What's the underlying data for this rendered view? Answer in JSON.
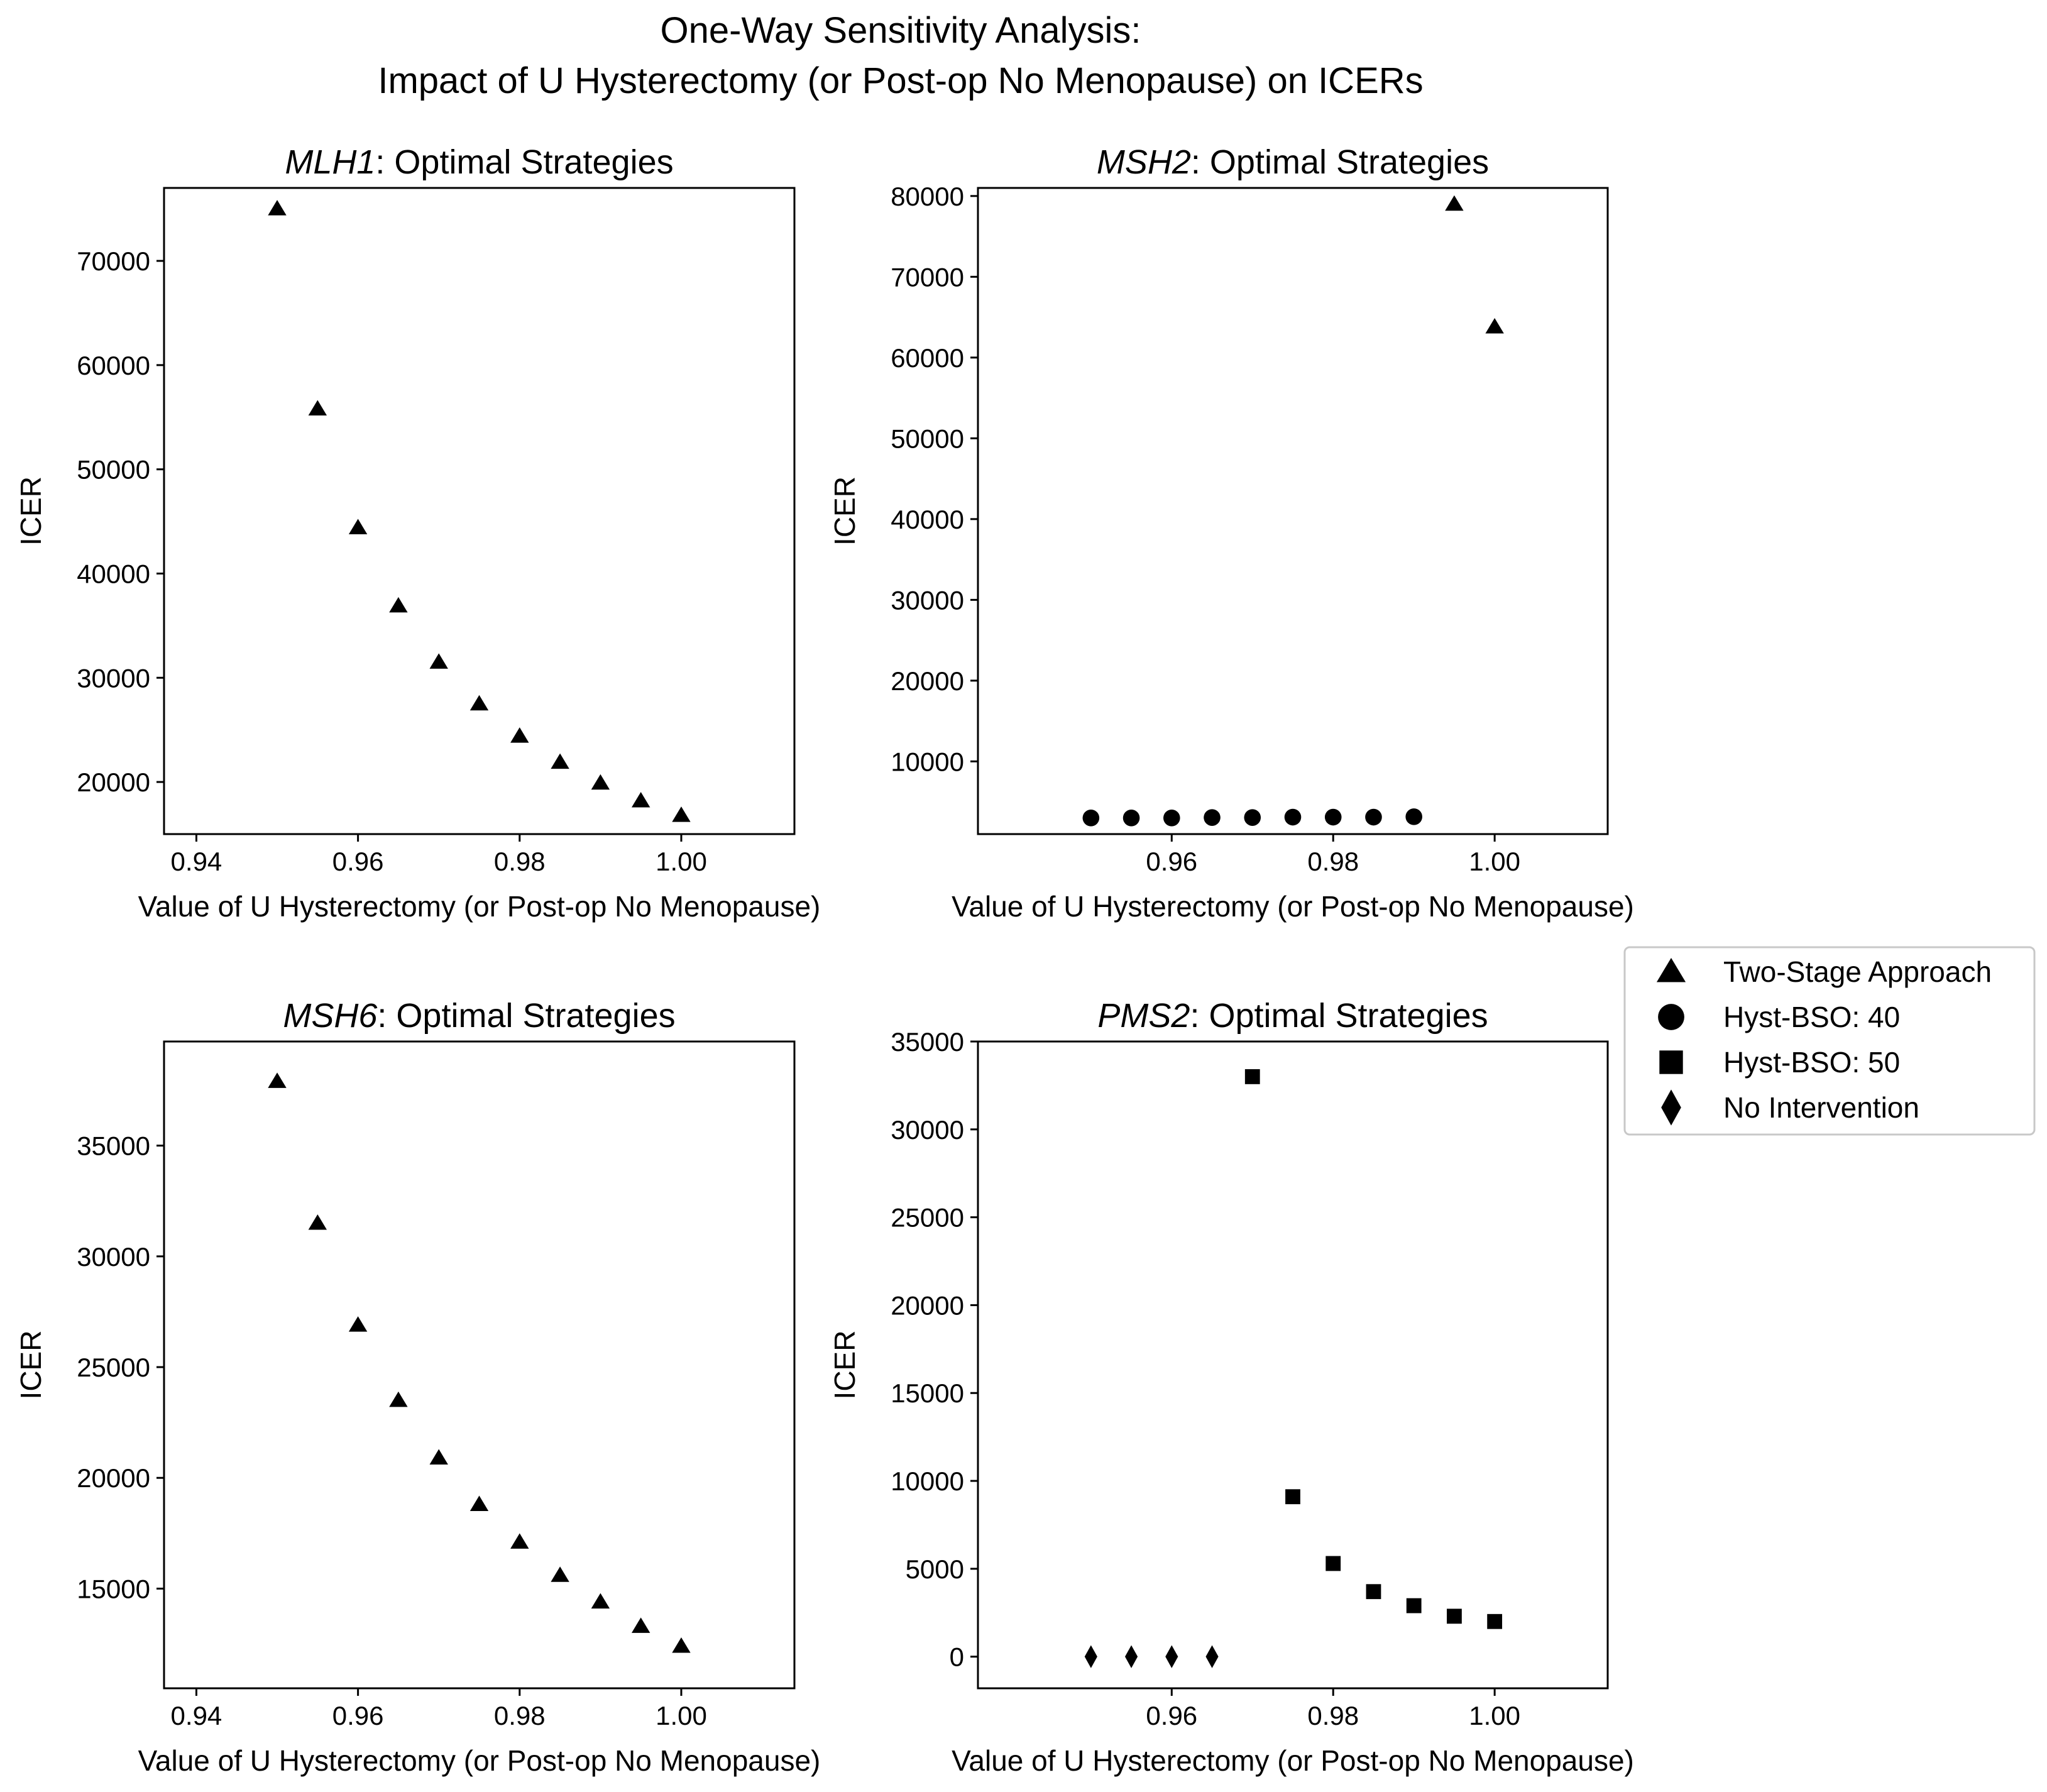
{
  "figure": {
    "title_line1": "One-Way Sensitivity Analysis:",
    "title_line2": "Impact of U Hysterectomy (or Post-op No Menopause) on ICERs"
  },
  "legend": {
    "items": [
      {
        "label": "Two-Stage Approach",
        "marker": "triangle"
      },
      {
        "label": "Hyst-BSO: 40",
        "marker": "circle"
      },
      {
        "label": "Hyst-BSO: 50",
        "marker": "square"
      },
      {
        "label": "No Intervention",
        "marker": "diamond"
      }
    ]
  },
  "chart_data": [
    {
      "type": "scatter",
      "title_gene": "MLH1",
      "title_suffix": ": Optimal Strategies",
      "xlabel": "Value of U Hysterectomy (or Post-op No Menopause)",
      "ylabel": "ICER",
      "xlim": [
        0.936,
        1.014
      ],
      "ylim": [
        15000,
        77000
      ],
      "xticks": [
        "0.94",
        "0.96",
        "0.98",
        "1.00"
      ],
      "yticks": [
        "20000",
        "30000",
        "40000",
        "50000",
        "60000",
        "70000"
      ],
      "grid": false,
      "series": [
        {
          "marker": "triangle",
          "x": [
            0.95,
            0.955,
            0.96,
            0.965,
            0.97,
            0.975,
            0.98,
            0.985,
            0.99,
            0.995,
            1.0
          ],
          "y": [
            75000,
            55800,
            44400,
            36900,
            31500,
            27500,
            24400,
            21900,
            19900,
            18200,
            16800
          ]
        }
      ]
    },
    {
      "type": "scatter",
      "title_gene": "MSH2",
      "title_suffix": ": Optimal Strategies",
      "xlabel": "Value of U Hysterectomy (or Post-op No Menopause)",
      "ylabel": "ICER",
      "xlim": [
        0.936,
        1.014
      ],
      "ylim": [
        1000,
        81000
      ],
      "xticks": [
        "0.96",
        "0.98",
        "1.00"
      ],
      "yticks": [
        "10000",
        "20000",
        "30000",
        "40000",
        "50000",
        "60000",
        "70000",
        "80000"
      ],
      "grid": false,
      "series": [
        {
          "marker": "circle",
          "x": [
            0.95,
            0.955,
            0.96,
            0.965,
            0.97,
            0.975,
            0.98,
            0.985,
            0.99
          ],
          "y": [
            3000,
            3000,
            3000,
            3050,
            3050,
            3100,
            3100,
            3100,
            3150
          ]
        },
        {
          "marker": "triangle",
          "x": [
            0.995,
            1.0
          ],
          "y": [
            79000,
            63800
          ]
        }
      ]
    },
    {
      "type": "scatter",
      "title_gene": "MSH6",
      "title_suffix": ": Optimal Strategies",
      "xlabel": "Value of U Hysterectomy (or Post-op No Menopause)",
      "ylabel": "ICER",
      "xlim": [
        0.936,
        1.014
      ],
      "ylim": [
        10500,
        39700
      ],
      "xticks": [
        "0.94",
        "0.96",
        "0.98",
        "1.00"
      ],
      "yticks": [
        "15000",
        "20000",
        "25000",
        "30000",
        "35000"
      ],
      "grid": false,
      "series": [
        {
          "marker": "triangle",
          "x": [
            0.95,
            0.955,
            0.96,
            0.965,
            0.97,
            0.975,
            0.98,
            0.985,
            0.99,
            0.995,
            1.0
          ],
          "y": [
            37900,
            31500,
            26900,
            23500,
            20900,
            18800,
            17100,
            15600,
            14400,
            13300,
            12400
          ]
        }
      ]
    },
    {
      "type": "scatter",
      "title_gene": "PMS2",
      "title_suffix": ": Optimal Strategies",
      "xlabel": "Value of U Hysterectomy (or Post-op No Menopause)",
      "ylabel": "ICER",
      "xlim": [
        0.936,
        1.014
      ],
      "ylim": [
        -1800,
        35000
      ],
      "xticks": [
        "0.96",
        "0.98",
        "1.00"
      ],
      "yticks": [
        "0",
        "5000",
        "10000",
        "15000",
        "20000",
        "25000",
        "30000",
        "35000"
      ],
      "grid": false,
      "series": [
        {
          "marker": "diamond",
          "x": [
            0.95,
            0.955,
            0.96,
            0.965
          ],
          "y": [
            0,
            0,
            0,
            0
          ]
        },
        {
          "marker": "square",
          "x": [
            0.97,
            0.975,
            0.98,
            0.985,
            0.99,
            0.995,
            1.0
          ],
          "y": [
            33000,
            9100,
            5300,
            3700,
            2900,
            2300,
            2000
          ]
        }
      ]
    }
  ]
}
